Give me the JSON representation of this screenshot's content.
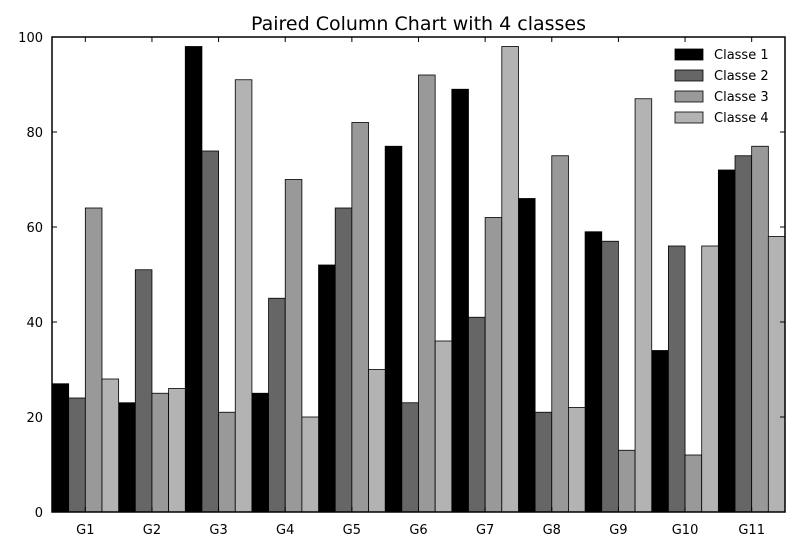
{
  "chart_data": {
    "type": "bar",
    "title": "Paired Column Chart with 4 classes",
    "xlabel": "",
    "ylabel": "",
    "categories": [
      "G1",
      "G2",
      "G3",
      "G4",
      "G5",
      "G6",
      "G7",
      "G8",
      "G9",
      "G10",
      "G11"
    ],
    "series": [
      {
        "name": "Classe 1",
        "color": "#000000",
        "values": [
          27,
          23,
          98,
          25,
          52,
          77,
          89,
          66,
          59,
          34,
          72
        ]
      },
      {
        "name": "Classe 2",
        "color": "#666666",
        "values": [
          24,
          51,
          76,
          45,
          64,
          23,
          41,
          21,
          57,
          56,
          75
        ]
      },
      {
        "name": "Classe 3",
        "color": "#999999",
        "values": [
          64,
          25,
          21,
          70,
          82,
          92,
          62,
          75,
          13,
          12,
          77
        ]
      },
      {
        "name": "Classe 4",
        "color": "#b3b3b3",
        "values": [
          28,
          26,
          91,
          20,
          30,
          36,
          98,
          22,
          87,
          56,
          58
        ]
      }
    ],
    "ylim": [
      0,
      100
    ],
    "yticks": [
      0,
      20,
      40,
      60,
      80,
      100
    ],
    "grid": false,
    "legend_position": "top-right"
  }
}
